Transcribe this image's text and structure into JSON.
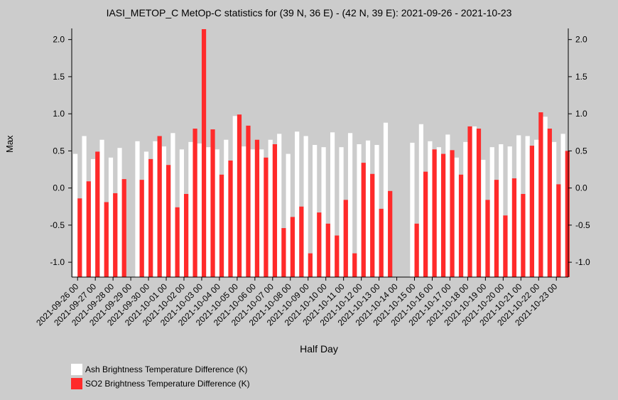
{
  "chart_data": {
    "type": "bar",
    "title": "IASI_METOP_C MetOp-C statistics for (39 N, 36 E) - (42 N, 39 E): 2021-09-26 - 2021-10-23",
    "xlabel": "Half Day",
    "ylabel": "Max",
    "ylim": [
      -1.2,
      2.15
    ],
    "yticks": [
      "2.0",
      "1.5",
      "1.0",
      "0.5",
      "0.0",
      "-0.5",
      "-1.0"
    ],
    "ytick_values": [
      2.0,
      1.5,
      1.0,
      0.5,
      0.0,
      -0.5,
      -1.0
    ],
    "grid": false,
    "legend_position": "bottom-left",
    "categories": [
      "2021-09-26 00",
      "2021-09-26 12",
      "2021-09-27 00",
      "2021-09-27 12",
      "2021-09-28 00",
      "2021-09-28 12",
      "2021-09-29 00",
      "2021-09-29 12",
      "2021-09-30 00",
      "2021-09-30 12",
      "2021-10-01 00",
      "2021-10-01 12",
      "2021-10-02 00",
      "2021-10-02 12",
      "2021-10-03 00",
      "2021-10-03 12",
      "2021-10-04 00",
      "2021-10-04 12",
      "2021-10-05 00",
      "2021-10-05 12",
      "2021-10-06 00",
      "2021-10-06 12",
      "2021-10-07 00",
      "2021-10-07 12",
      "2021-10-08 00",
      "2021-10-08 12",
      "2021-10-09 00",
      "2021-10-09 12",
      "2021-10-10 00",
      "2021-10-10 12",
      "2021-10-11 00",
      "2021-10-11 12",
      "2021-10-12 00",
      "2021-10-12 12",
      "2021-10-13 00",
      "2021-10-13 12",
      "2021-10-14 00",
      "2021-10-14 12",
      "2021-10-15 00",
      "2021-10-15 12",
      "2021-10-16 00",
      "2021-10-16 12",
      "2021-10-17 00",
      "2021-10-17 12",
      "2021-10-18 00",
      "2021-10-18 12",
      "2021-10-19 00",
      "2021-10-19 12",
      "2021-10-20 00",
      "2021-10-20 12",
      "2021-10-21 00",
      "2021-10-21 12",
      "2021-10-22 00",
      "2021-10-22 12",
      "2021-10-23 00",
      "2021-10-23 12"
    ],
    "xtick_labels": [
      "2021-09-26 00",
      "2021-09-27 00",
      "2021-09-28 00",
      "2021-09-29 00",
      "2021-09-30 00",
      "2021-10-01 00",
      "2021-10-02 00",
      "2021-10-03 00",
      "2021-10-04 00",
      "2021-10-05 00",
      "2021-10-06 00",
      "2021-10-07 00",
      "2021-10-08 00",
      "2021-10-09 00",
      "2021-10-10 00",
      "2021-10-11 00",
      "2021-10-12 00",
      "2021-10-13 00",
      "2021-10-14 00",
      "2021-10-15 00",
      "2021-10-16 00",
      "2021-10-17 00",
      "2021-10-18 00",
      "2021-10-19 00",
      "2021-10-20 00",
      "2021-10-21 00",
      "2021-10-22 00",
      "2021-10-23 00"
    ],
    "series": [
      {
        "name": "Ash Brightness Temperature Difference (K)",
        "color": "#ffffff",
        "values": [
          0.46,
          0.7,
          0.39,
          0.65,
          0.41,
          0.54,
          null,
          0.63,
          0.49,
          0.63,
          0.56,
          0.74,
          0.52,
          0.62,
          0.6,
          0.55,
          0.52,
          0.65,
          0.97,
          0.56,
          0.52,
          0.52,
          0.65,
          0.73,
          0.46,
          0.76,
          0.7,
          0.58,
          0.55,
          0.75,
          0.55,
          0.74,
          0.59,
          0.64,
          0.58,
          0.88,
          null,
          null,
          0.61,
          0.86,
          0.63,
          0.55,
          0.72,
          0.41,
          0.62,
          0.83,
          0.38,
          0.55,
          0.59,
          0.56,
          0.71,
          0.7,
          0.65,
          0.96,
          0.62,
          0.73
        ]
      },
      {
        "name": "SO2 Brightness Temperature Difference (K)",
        "color": "#ff2a2a",
        "values": [
          -0.14,
          0.09,
          0.49,
          -0.19,
          -0.07,
          0.12,
          null,
          0.11,
          0.39,
          0.7,
          0.31,
          -0.26,
          -0.08,
          0.8,
          2.14,
          0.79,
          0.18,
          0.37,
          0.99,
          0.84,
          0.65,
          0.41,
          0.59,
          -0.54,
          -0.39,
          -0.25,
          -0.88,
          -0.33,
          -0.48,
          -0.64,
          -0.16,
          -0.88,
          0.34,
          0.19,
          -0.28,
          -0.04,
          null,
          null,
          -0.48,
          0.22,
          0.52,
          0.46,
          0.51,
          0.18,
          0.83,
          0.8,
          -0.16,
          0.11,
          -0.37,
          0.13,
          -0.08,
          0.57,
          1.02,
          0.8,
          0.05,
          0.5
        ]
      }
    ]
  }
}
